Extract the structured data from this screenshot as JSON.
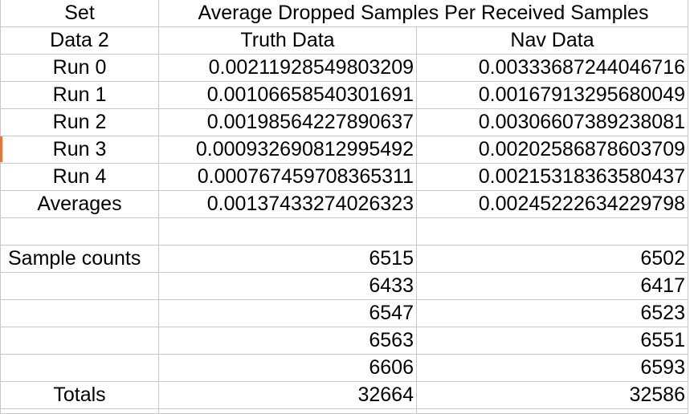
{
  "header": {
    "set_label": "Set",
    "title": "Average Dropped Samples Per Received Samples"
  },
  "subheader": {
    "set_name": "Data 2",
    "col1": "Truth Data",
    "col2": "Nav Data"
  },
  "runs": [
    {
      "label": "Run 0",
      "truth": "0.00211928549803209",
      "nav": "0.00333687244046716"
    },
    {
      "label": "Run 1",
      "truth": "0.00106658540301691",
      "nav": "0.00167913295680049"
    },
    {
      "label": "Run 2",
      "truth": "0.00198564227890637",
      "nav": "0.00306607389238081"
    },
    {
      "label": "Run 3",
      "truth": "0.000932690812995492",
      "nav": "0.00202586878603709"
    },
    {
      "label": "Run 4",
      "truth": "0.000767459708365311",
      "nav": "0.00215318363580437"
    }
  ],
  "averages": {
    "label": "Averages",
    "truth": "0.00137433274026323",
    "nav": "0.00245222634229798"
  },
  "sample_counts": {
    "label": "Sample counts",
    "rows": [
      {
        "truth": "6515",
        "nav": "6502"
      },
      {
        "truth": "6433",
        "nav": "6417"
      },
      {
        "truth": "6547",
        "nav": "6523"
      },
      {
        "truth": "6563",
        "nav": "6551"
      },
      {
        "truth": "6606",
        "nav": "6593"
      }
    ]
  },
  "totals": {
    "label": "Totals",
    "truth": "32664",
    "nav": "32586"
  }
}
